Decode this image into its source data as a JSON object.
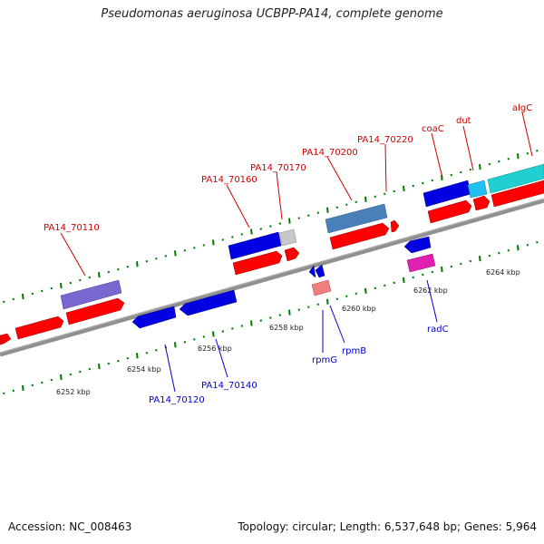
{
  "title": "Pseudomonas aeruginosa UCBPP-PA14, complete genome",
  "footer": {
    "accession": "Accession: NC_008463",
    "summary": "Topology: circular; Length: 6,537,648 bp; Genes: 5,964"
  },
  "colors": {
    "backbone": "#808080",
    "cds_forward": "#ff0000",
    "cds_reverse": "#0000e0",
    "label_forward": "#cc0000",
    "label_reverse": "#0000cc",
    "tick": "#007a00"
  },
  "kbp_labels": [
    "6252 kbp",
    "6254 kbp",
    "6256 kbp",
    "6258 kbp",
    "6260 kbp",
    "6262 kbp",
    "6264 kbp"
  ],
  "top_labels": [
    "PA14_70110",
    "PA14_70160",
    "PA14_70170",
    "PA14_70200",
    "PA14_70220",
    "coaC",
    "dut",
    "algC"
  ],
  "bottom_labels": [
    "PA14_70120",
    "PA14_70140",
    "rpmG",
    "rpmB",
    "radC"
  ]
}
